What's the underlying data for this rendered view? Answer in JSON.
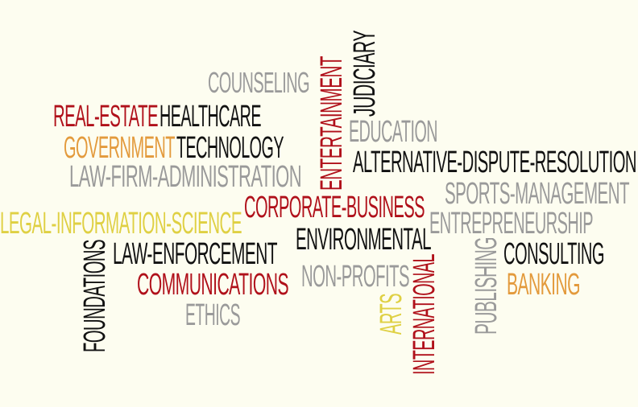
{
  "words": {
    "counseling": "COUNSELING",
    "real_estate": "REAL-ESTATE",
    "healthcare": "HEALTHCARE",
    "government": "GOVERNMENT",
    "technology": "TECHNOLOGY",
    "law_firm_administration": "LAW-FIRM-ADMINISTRATION",
    "legal_information_science": "LEGAL-INFORMATION-SCIENCE",
    "foundations": "FOUNDATIONS",
    "law_enforcement": "LAW-ENFORCEMENT",
    "communications": "COMMUNICATIONS",
    "ethics": "ETHICS",
    "entertainment": "ENTERTAINMENT",
    "judiciary": "JUDICIARY",
    "education": "EDUCATION",
    "alternative_dispute_resolution": "ALTERNATIVE-DISPUTE-RESOLUTION",
    "corporate_business": "CORPORATE-BUSINESS",
    "sports_management": "SPORTS-MANAGEMENT",
    "entrepreneurship": "ENTREPRENEURSHIP",
    "environmental": "ENVIRONMENTAL",
    "non_profits": "NON-PROFITS",
    "arts": "ARTS",
    "international": "INTERNATIONAL",
    "publishing": "PUBLISHING",
    "consulting": "CONSULTING",
    "banking": "BANKING"
  },
  "colors": {
    "background": "#fdfdf0",
    "black": "#111111",
    "red": "#b0101a",
    "orange": "#e39a3c",
    "yellow": "#dfd043",
    "gray": "#9a9a9a"
  }
}
